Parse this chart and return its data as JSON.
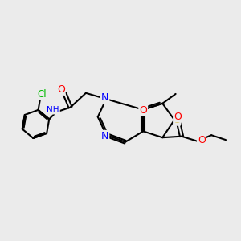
{
  "bg_color": "#ebebeb",
  "bond_color": "#000000",
  "bond_width": 1.5,
  "atom_colors": {
    "C": "#000000",
    "H": "#607080",
    "N": "#0000ff",
    "O": "#ff0000",
    "S": "#ccaa00",
    "Cl": "#00bb00"
  },
  "figsize": [
    3.0,
    3.0
  ],
  "dpi": 100
}
